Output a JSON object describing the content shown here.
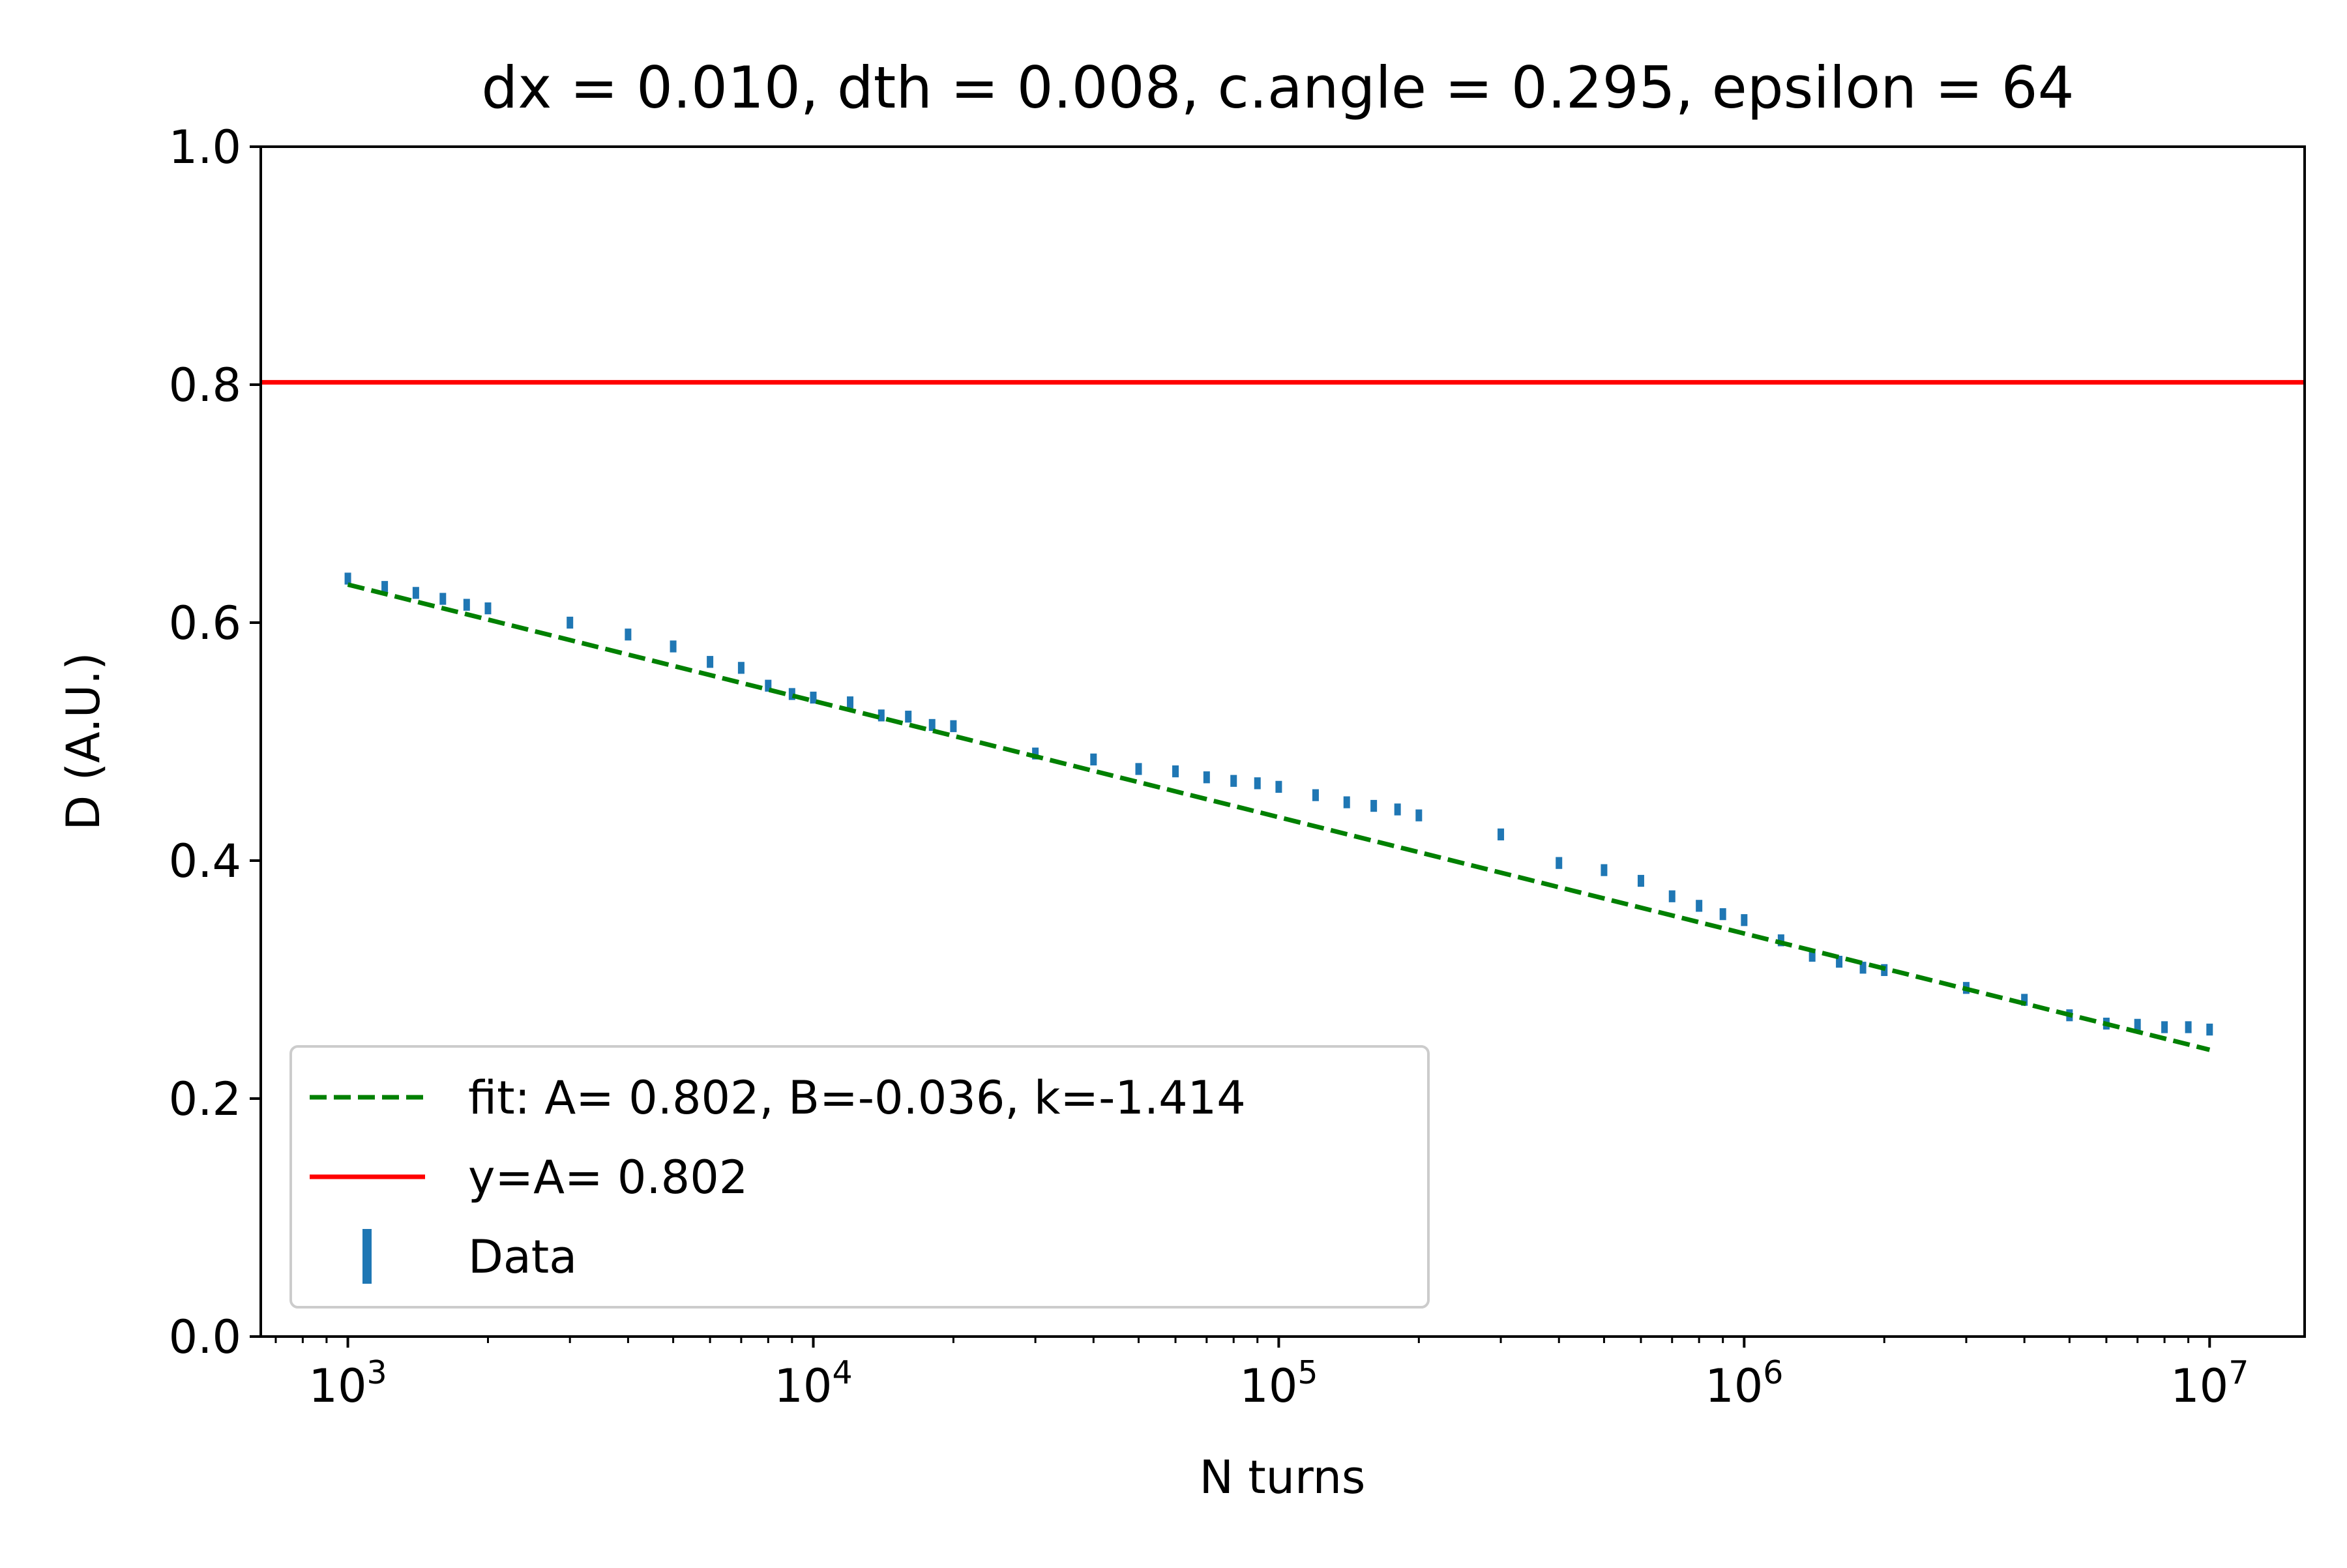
{
  "chart_data": {
    "type": "scatter",
    "title": "dx = 0.010, dth = 0.008, c.angle = 0.295, epsilon = 64",
    "xlabel": "N turns",
    "ylabel": "D (A.U.)",
    "xscale": "log",
    "xlim": [
      650,
      16000000
    ],
    "ylim": [
      0,
      1
    ],
    "xticks": [
      {
        "value": 1000,
        "base": "10",
        "exp": "3"
      },
      {
        "value": 10000,
        "base": "10",
        "exp": "4"
      },
      {
        "value": 100000,
        "base": "10",
        "exp": "5"
      },
      {
        "value": 1000000,
        "base": "10",
        "exp": "6"
      },
      {
        "value": 10000000,
        "base": "10",
        "exp": "7"
      }
    ],
    "yticks": [
      {
        "value": 0.0,
        "label": "0.0"
      },
      {
        "value": 0.2,
        "label": "0.2"
      },
      {
        "value": 0.4,
        "label": "0.4"
      },
      {
        "value": 0.6,
        "label": "0.6"
      },
      {
        "value": 0.8,
        "label": "0.8"
      },
      {
        "value": 1.0,
        "label": "1.0"
      }
    ],
    "grid": false,
    "legend_position": "lower-left",
    "series": [
      {
        "name": "Data",
        "kind": "errorbar",
        "color": "#1f77b4",
        "x": [
          1000,
          1200,
          1400,
          1600,
          1800,
          2000,
          3000,
          4000,
          5000,
          6000,
          7000,
          8000,
          9000,
          10000,
          12000,
          14000,
          16000,
          18000,
          20000,
          30000,
          40000,
          50000,
          60000,
          70000,
          80000,
          90000,
          100000,
          120000,
          140000,
          160000,
          180000,
          200000,
          300000,
          400000,
          500000,
          600000,
          700000,
          800000,
          900000,
          1000000,
          1200000,
          1400000,
          1600000,
          1800000,
          2000000,
          3000000,
          4000000,
          5000000,
          6000000,
          7000000,
          8000000,
          9000000,
          10000000
        ],
        "y": [
          0.637,
          0.63,
          0.625,
          0.62,
          0.615,
          0.612,
          0.6,
          0.59,
          0.58,
          0.567,
          0.562,
          0.547,
          0.54,
          0.537,
          0.533,
          0.522,
          0.521,
          0.514,
          0.513,
          0.49,
          0.485,
          0.477,
          0.475,
          0.47,
          0.467,
          0.465,
          0.462,
          0.455,
          0.449,
          0.446,
          0.443,
          0.438,
          0.422,
          0.398,
          0.392,
          0.383,
          0.37,
          0.362,
          0.355,
          0.35,
          0.333,
          0.32,
          0.315,
          0.31,
          0.308,
          0.293,
          0.283,
          0.27,
          0.263,
          0.262,
          0.26,
          0.26,
          0.258
        ],
        "yerr": 0.005
      },
      {
        "name": "fit: A= 0.802, B=-0.036, k=-1.414",
        "kind": "line",
        "style": "dashed",
        "color": "#008000",
        "x": [
          1000,
          10000000
        ],
        "y": [
          0.632,
          0.241
        ]
      },
      {
        "name": "y=A= 0.802",
        "kind": "hline",
        "style": "solid",
        "color": "#ff0000",
        "y": 0.802
      }
    ],
    "legend": [
      {
        "label": "fit: A= 0.802, B=-0.036, k=-1.414",
        "color": "#008000",
        "style": "dashed"
      },
      {
        "label": "y=A= 0.802",
        "color": "#ff0000",
        "style": "solid"
      },
      {
        "label": "Data",
        "color": "#1f77b4",
        "style": "errorbar"
      }
    ]
  }
}
